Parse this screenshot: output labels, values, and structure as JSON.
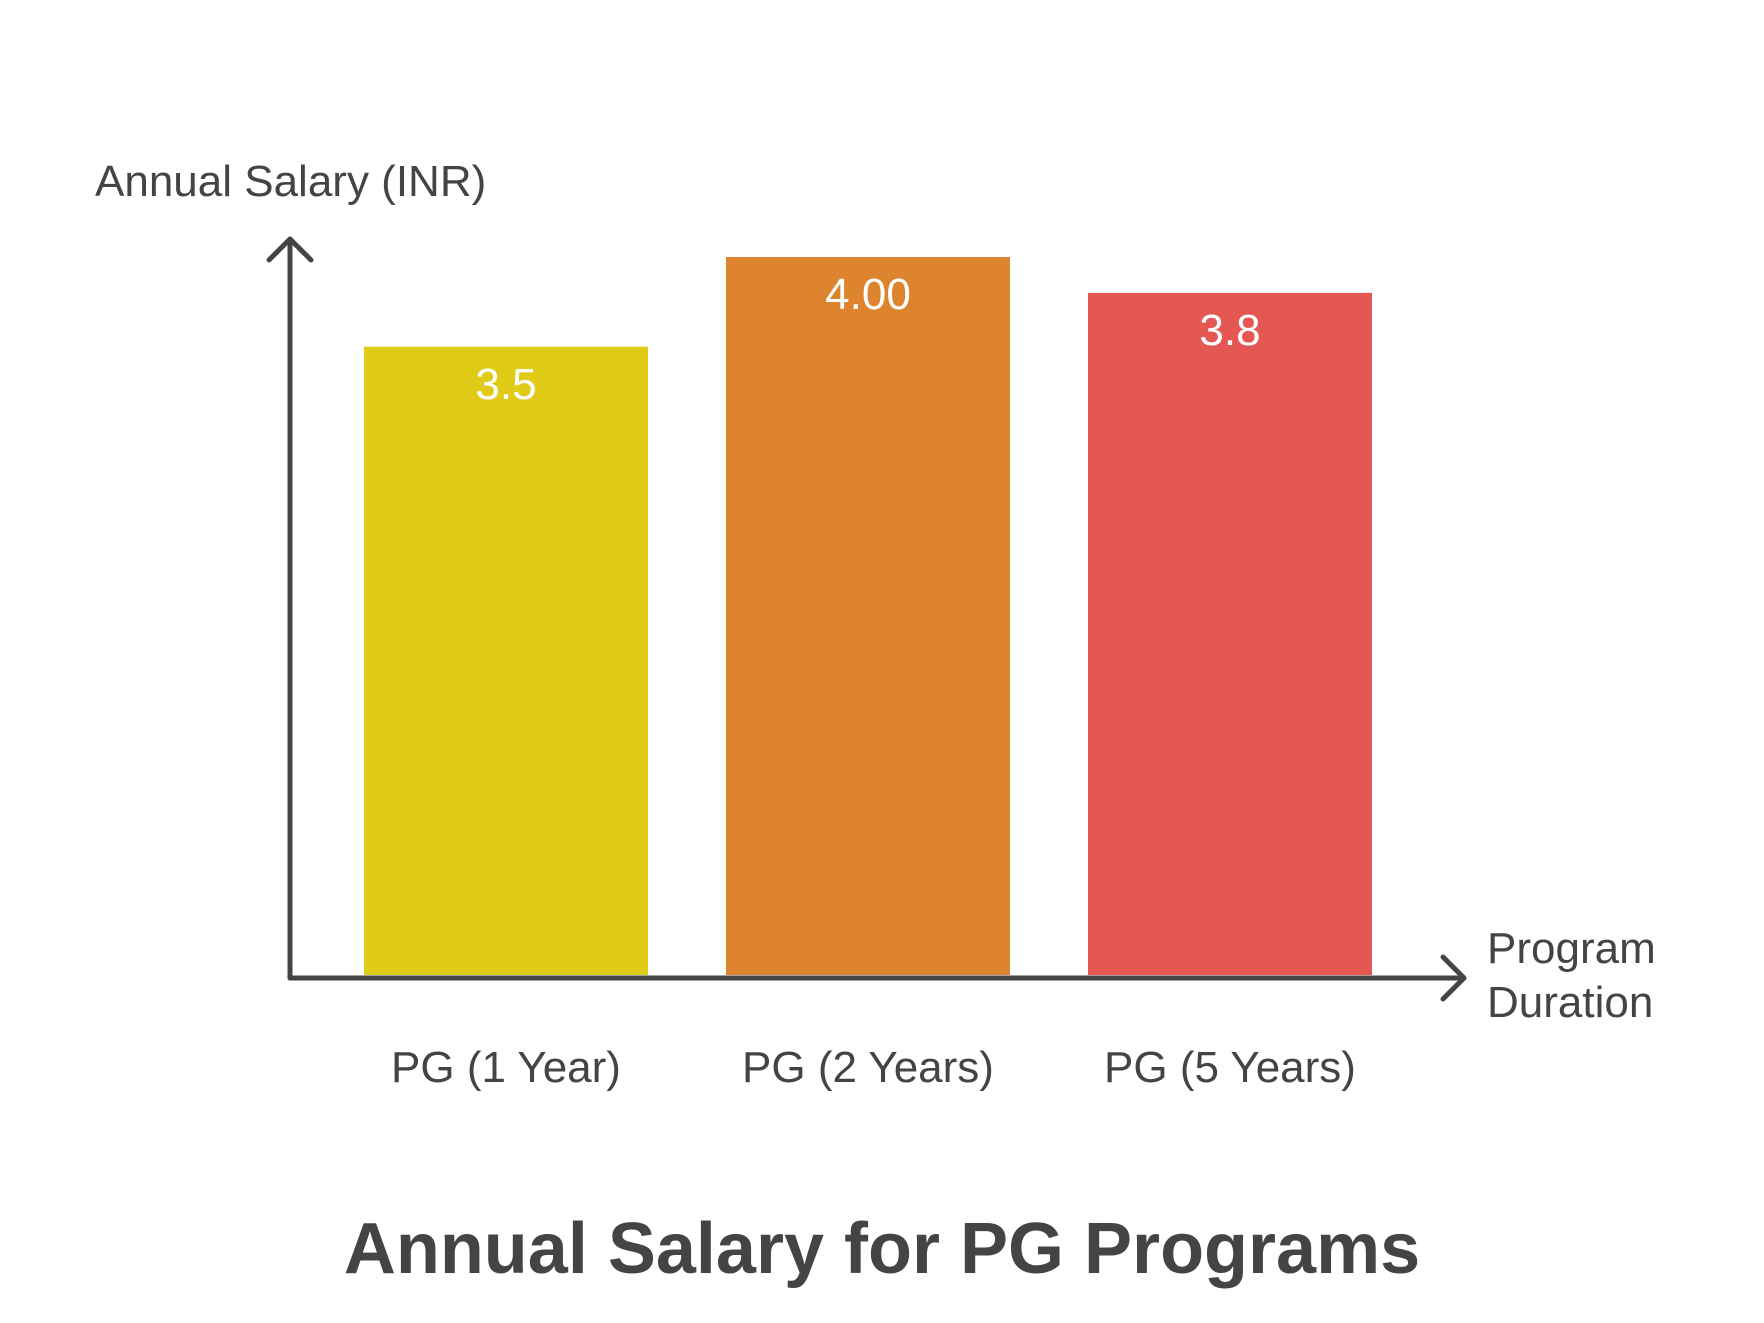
{
  "chart_data": {
    "type": "bar",
    "title": "Annual Salary for PG Programs",
    "ylabel": "Annual Salary (INR)",
    "xlabel_lines": [
      "Program",
      "Duration"
    ],
    "categories": [
      "PG (1 Year)",
      "PG (2 Years)",
      "PG (5 Years)"
    ],
    "values": [
      3.5,
      4.0,
      3.8
    ],
    "value_labels": [
      "3.5",
      "4.00",
      "3.8"
    ],
    "colors": [
      "#e0cc16",
      "#de842f",
      "#e55753"
    ],
    "ylim": [
      0,
      4.0
    ],
    "grid": false,
    "legend": "none"
  }
}
